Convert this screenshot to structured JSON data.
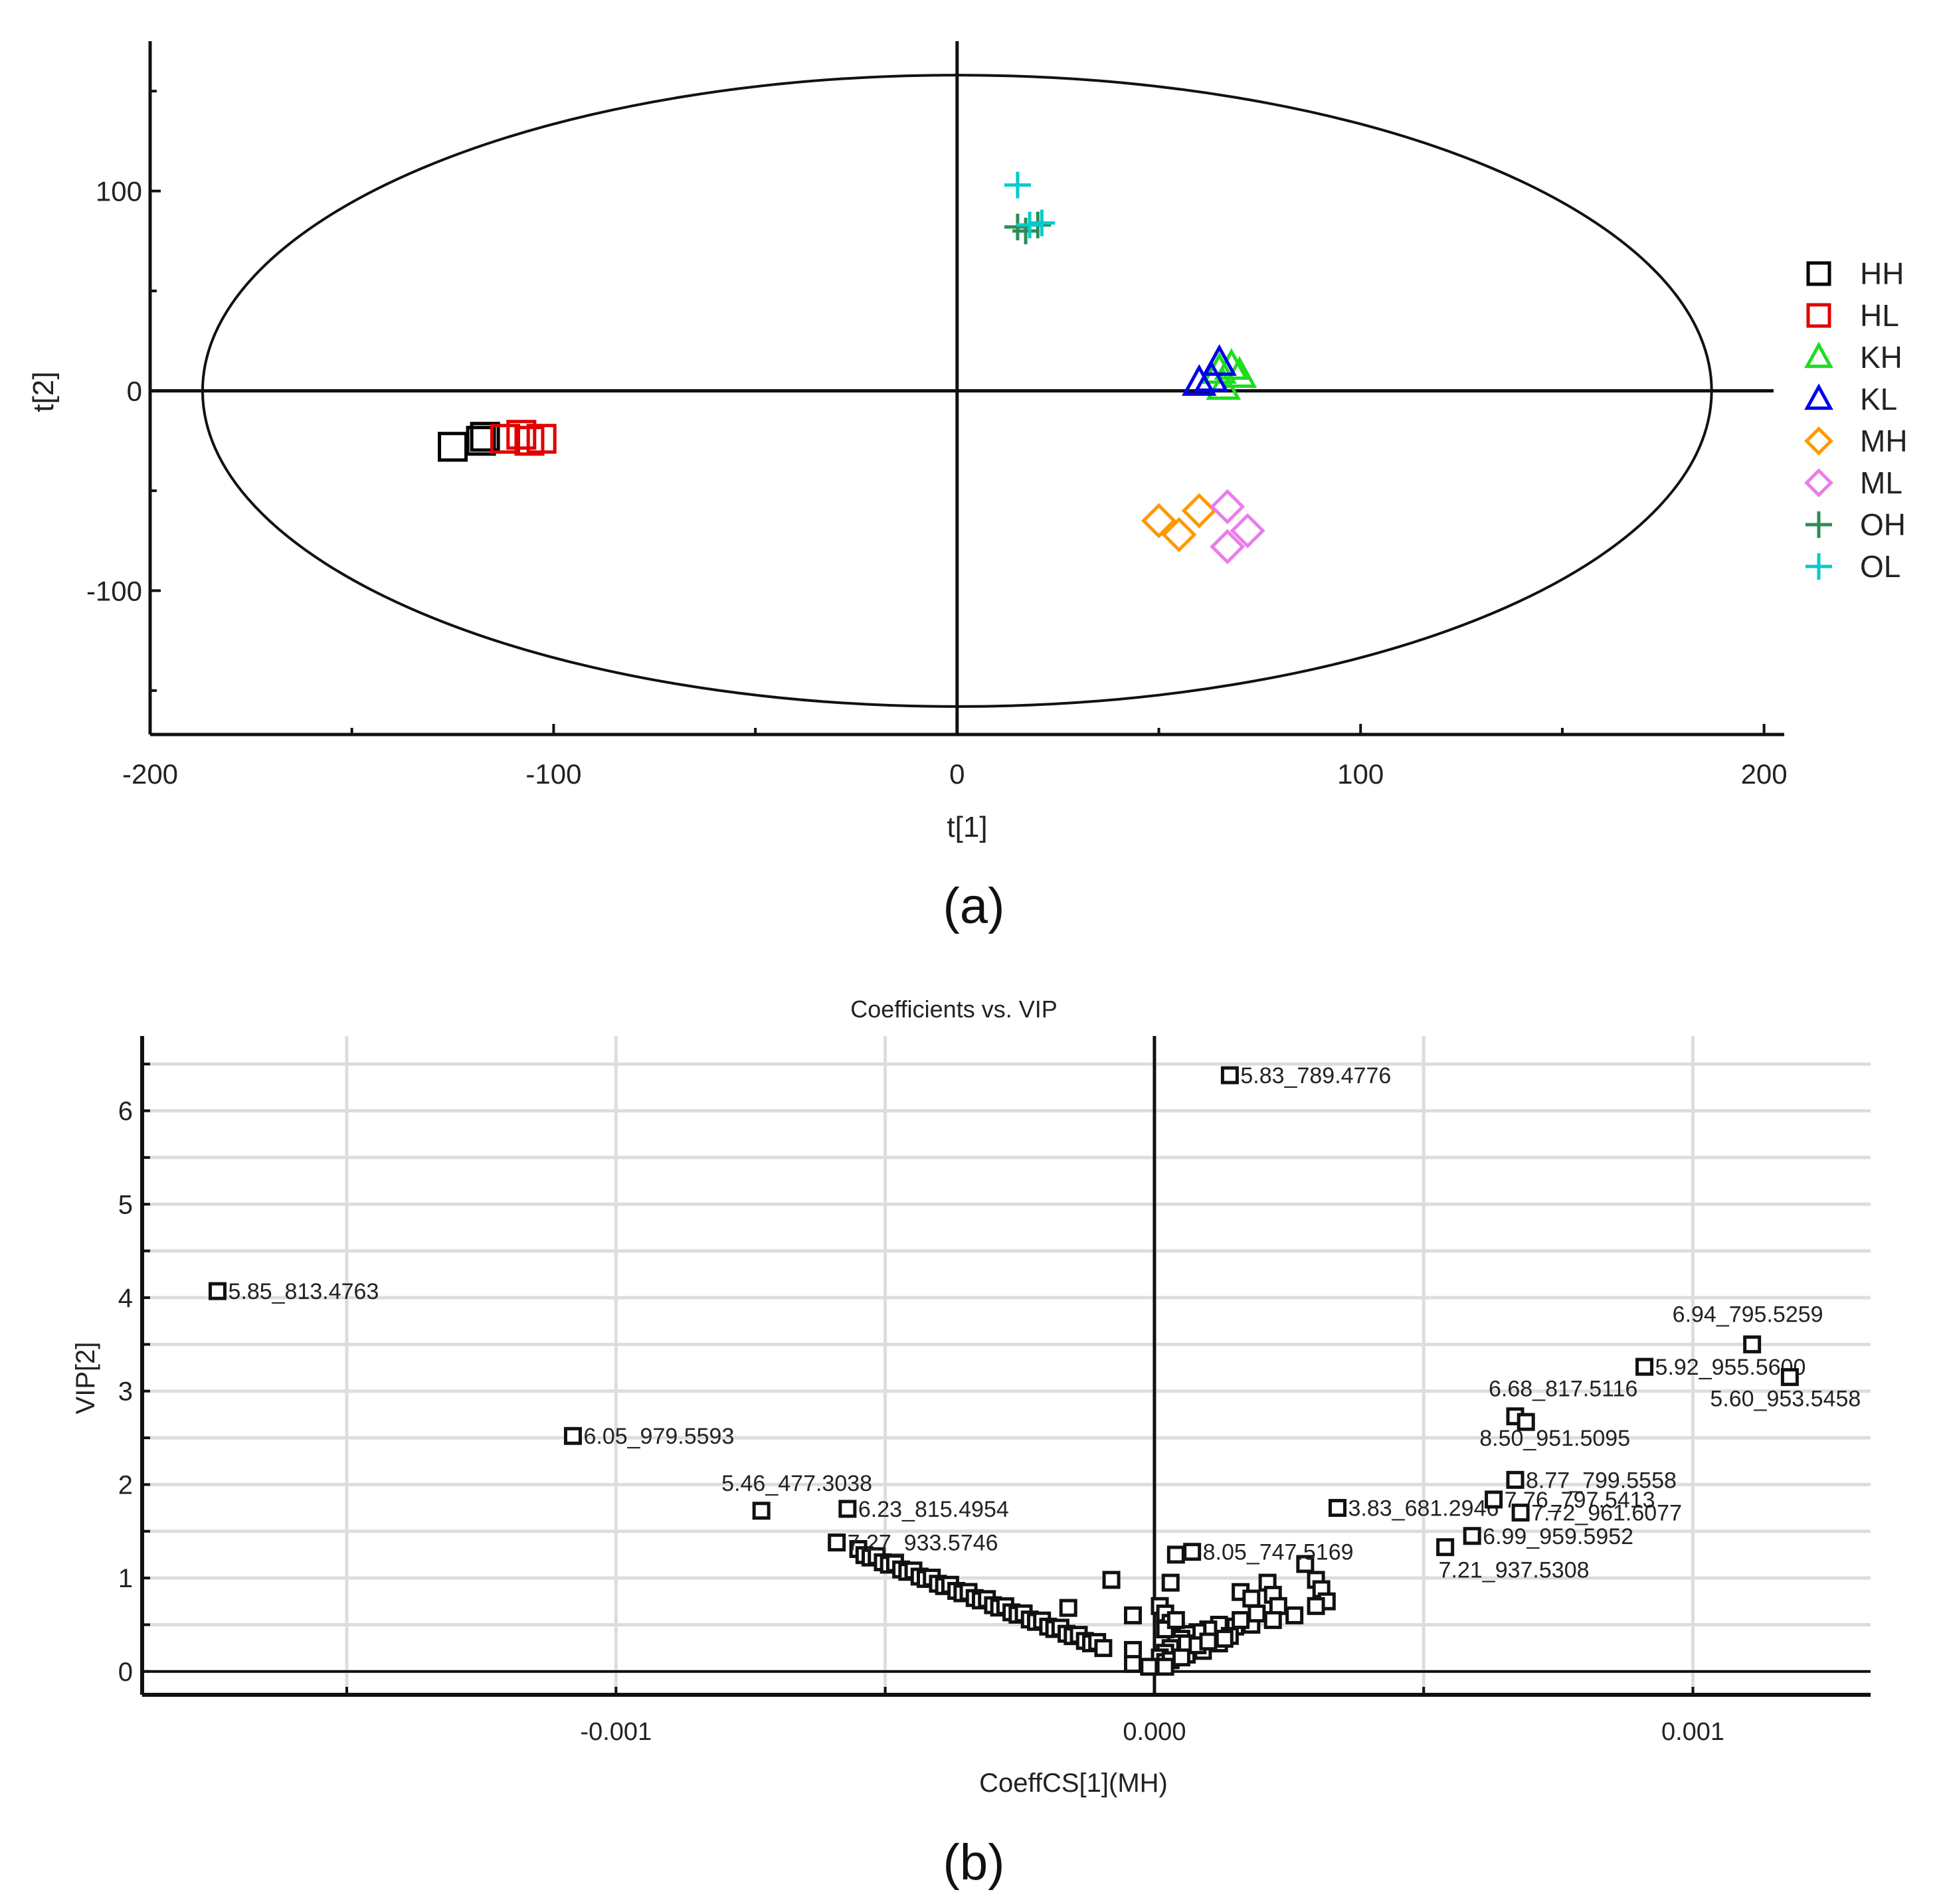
{
  "chart_data": [
    {
      "panel_label": "(a)",
      "type": "scatter",
      "xlabel": "t[1]",
      "ylabel": "t[2]",
      "xlim": [
        -200,
        205
      ],
      "ylim": [
        -172,
        175
      ],
      "xticks": [
        "-200",
        "-100",
        "0",
        "100",
        "200"
      ],
      "yticks": [
        "100",
        "0",
        "-100"
      ],
      "ellipse": {
        "center": [
          0,
          0
        ],
        "semi_axis_t1": 187,
        "semi_axis_t2": 158
      },
      "legend_position": "right",
      "series": [
        {
          "name": "HH",
          "marker": "square",
          "color": "#000000",
          "points": [
            [
              -125,
              -28
            ],
            [
              -118,
              -25
            ],
            [
              -117,
              -23
            ]
          ]
        },
        {
          "name": "HL",
          "marker": "square",
          "color": "#e00000",
          "points": [
            [
              -112,
              -24
            ],
            [
              -108,
              -22
            ],
            [
              -106,
              -25
            ],
            [
              -103,
              -24
            ]
          ]
        },
        {
          "name": "KH",
          "marker": "triangle",
          "color": "#1fdc1f",
          "points": [
            [
              65,
              10
            ],
            [
              68,
              12
            ],
            [
              66,
              2
            ],
            [
              70,
              8
            ]
          ]
        },
        {
          "name": "KL",
          "marker": "triangle",
          "color": "#0000ee",
          "points": [
            [
              60,
              4
            ],
            [
              63,
              6
            ],
            [
              65,
              14
            ]
          ]
        },
        {
          "name": "MH",
          "marker": "diamond",
          "color": "#ff9900",
          "points": [
            [
              50,
              -65
            ],
            [
              55,
              -72
            ],
            [
              60,
              -60
            ]
          ]
        },
        {
          "name": "ML",
          "marker": "diamond",
          "color": "#e87ee8",
          "points": [
            [
              67,
              -58
            ],
            [
              72,
              -70
            ],
            [
              67,
              -78
            ]
          ]
        },
        {
          "name": "OH",
          "marker": "plus",
          "color": "#2e8b57",
          "points": [
            [
              15,
              82
            ],
            [
              17,
              80
            ],
            [
              20,
              83
            ]
          ]
        },
        {
          "name": "OL",
          "marker": "plus",
          "color": "#00cccc",
          "points": [
            [
              15,
              103
            ],
            [
              18,
              83
            ],
            [
              21,
              84
            ]
          ]
        }
      ]
    },
    {
      "panel_label": "(b)",
      "type": "scatter",
      "title": "Coefficients vs. VIP",
      "xlabel": "CoeffCS[1](MH)",
      "ylabel": "VIP[2]",
      "xlim": [
        -0.00188,
        0.00133
      ],
      "ylim": [
        -0.25,
        6.8
      ],
      "xticks": [
        "-0.001",
        "0.000",
        "0.001"
      ],
      "yticks": [
        "0",
        "1",
        "2",
        "3",
        "4",
        "5",
        "6"
      ],
      "labeled_points": [
        {
          "label": "5.83_789.4776",
          "x": 0.00014,
          "y": 6.38
        },
        {
          "label": "5.85_813.4763",
          "x": -0.00174,
          "y": 4.07
        },
        {
          "label": "6.94_795.5259",
          "x": 0.00111,
          "y": 3.5
        },
        {
          "label": "5.92_955.5600",
          "x": 0.00091,
          "y": 3.26
        },
        {
          "label": "5.60_953.5458",
          "x": 0.00118,
          "y": 3.15
        },
        {
          "label": "6.68_817.5116",
          "x": 0.00067,
          "y": 2.73
        },
        {
          "label": "8.50_951.5095",
          "x": 0.00069,
          "y": 2.67
        },
        {
          "label": "6.05_979.5593",
          "x": -0.00108,
          "y": 2.52
        },
        {
          "label": "8.77_799.5558",
          "x": 0.00067,
          "y": 2.05
        },
        {
          "label": "5.46_477.3038",
          "x": -0.00073,
          "y": 1.72
        },
        {
          "label": "6.23_815.4954",
          "x": -0.00057,
          "y": 1.74
        },
        {
          "label": "3.83_681.2946",
          "x": 0.00034,
          "y": 1.75
        },
        {
          "label": "7.76_797.5413",
          "x": 0.00063,
          "y": 1.84
        },
        {
          "label": "7.72_961.6077",
          "x": 0.00068,
          "y": 1.7
        },
        {
          "label": "6.99_959.5952",
          "x": 0.00059,
          "y": 1.45
        },
        {
          "label": "7.27_933.5746",
          "x": -0.00059,
          "y": 1.38
        },
        {
          "label": "8.05_747.5169",
          "x": 7e-05,
          "y": 1.28
        },
        {
          "label": "7.21_937.5308",
          "x": 0.00054,
          "y": 1.33
        }
      ],
      "unlabeled_points": [
        [
          4e-05,
          1.25
        ],
        [
          -8e-05,
          0.98
        ],
        [
          3e-05,
          0.95
        ],
        [
          -4e-05,
          0.6
        ],
        [
          -0.00016,
          0.68
        ],
        [
          0.00016,
          0.85
        ],
        [
          0.00021,
          0.95
        ],
        [
          0.00022,
          0.82
        ],
        [
          0.00018,
          0.78
        ],
        [
          0.00023,
          0.7
        ],
        [
          0.00026,
          0.6
        ],
        [
          0.00028,
          1.15
        ],
        [
          0.0003,
          0.98
        ],
        [
          0.00031,
          0.88
        ],
        [
          0.00032,
          0.75
        ],
        [
          0.0003,
          0.7
        ],
        [
          0.00022,
          0.55
        ],
        [
          0.00018,
          0.5
        ],
        [
          0.00015,
          0.48
        ],
        [
          0.00012,
          0.5
        ],
        [
          0.0001,
          0.45
        ],
        [
          8e-05,
          0.42
        ],
        [
          6e-05,
          0.4
        ],
        [
          5e-05,
          0.35
        ],
        [
          4e-05,
          0.3
        ],
        [
          3e-05,
          0.25
        ],
        [
          2e-05,
          0.2
        ],
        [
          1e-05,
          0.15
        ],
        [
          2e-05,
          0.1
        ],
        [
          3e-05,
          0.12
        ],
        [
          6e-05,
          0.18
        ],
        [
          9e-05,
          0.22
        ],
        [
          0.00012,
          0.3
        ],
        [
          0.00014,
          0.38
        ],
        [
          0.00016,
          0.55
        ],
        [
          1e-05,
          0.7
        ],
        [
          2e-05,
          0.62
        ],
        [
          3e-05,
          0.52
        ],
        [
          2e-05,
          0.45
        ],
        [
          4e-05,
          0.55
        ],
        [
          6e-05,
          0.3
        ],
        [
          8e-05,
          0.28
        ],
        [
          0.0001,
          0.32
        ],
        [
          -4e-05,
          0.23
        ],
        [
          -4e-05,
          0.08
        ],
        [
          -1e-05,
          0.05
        ],
        [
          2e-05,
          0.05
        ],
        [
          5e-05,
          0.15
        ],
        [
          0.00013,
          0.35
        ],
        [
          0.00019,
          0.62
        ]
      ]
    }
  ]
}
